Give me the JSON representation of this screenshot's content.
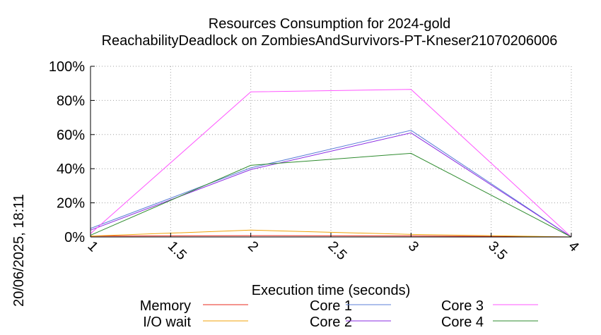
{
  "chart_data": {
    "type": "line",
    "title_line1": "Resources Consumption for 2024-gold",
    "title_line2": "ReachabilityDeadlock on ZombiesAndSurvivors-PT-Kneser21070206006",
    "xlabel": "Execution time (seconds)",
    "ylabel": "",
    "side_label": "20/06/2025, 18:11",
    "xlim": [
      1,
      4
    ],
    "ylim": [
      0,
      100
    ],
    "x_ticks": [
      "1",
      "1.5",
      "2",
      "2.5",
      "3",
      "3.5",
      "4"
    ],
    "x_tick_values": [
      1,
      1.5,
      2,
      2.5,
      3,
      3.5,
      4
    ],
    "y_ticks": [
      "0%",
      "20%",
      "40%",
      "60%",
      "80%",
      "100%"
    ],
    "y_tick_values": [
      0,
      20,
      40,
      60,
      80,
      100
    ],
    "grid": true,
    "legend_position": "bottom",
    "x": [
      1,
      2,
      3,
      4
    ],
    "series": [
      {
        "name": "Memory",
        "color": "#e8291c",
        "values": [
          0.5,
          0.8,
          0.6,
          0
        ]
      },
      {
        "name": "I/O wait",
        "color": "#f0a30a",
        "values": [
          0.5,
          4,
          1.5,
          0
        ]
      },
      {
        "name": "Core 1",
        "color": "#5b7fd8",
        "values": [
          5,
          40.5,
          62.5,
          0
        ]
      },
      {
        "name": "Core 2",
        "color": "#8a2be2",
        "values": [
          4,
          39.5,
          61,
          0
        ]
      },
      {
        "name": "Core 3",
        "color": "#ff55ff",
        "values": [
          2,
          85,
          86.5,
          0
        ]
      },
      {
        "name": "Core 4",
        "color": "#2e8b2e",
        "values": [
          1,
          42,
          49,
          0
        ]
      }
    ]
  }
}
